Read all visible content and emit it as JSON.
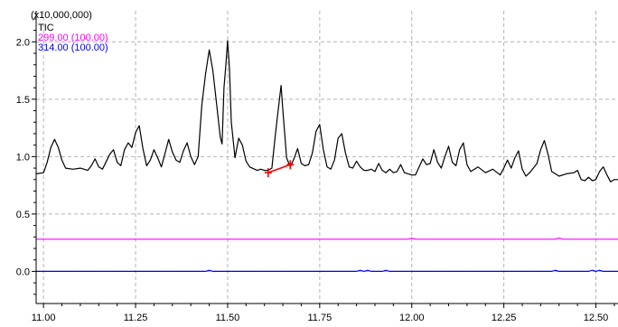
{
  "chart_data": {
    "type": "line",
    "multiplier_label": "(x10,000,000)",
    "xlim": [
      10.98,
      12.56
    ],
    "ylim": [
      -0.28,
      2.27
    ],
    "x_ticks": [
      11.0,
      11.25,
      11.5,
      11.75,
      12.0,
      12.25,
      12.5
    ],
    "x_tick_labels": [
      "11.00",
      "11.25",
      "11.50",
      "11.75",
      "12.00",
      "12.25",
      "12.50"
    ],
    "y_ticks": [
      0.0,
      0.5,
      1.0,
      1.5,
      2.0
    ],
    "y_tick_labels": [
      "0.0",
      "0.5",
      "1.0",
      "1.5",
      "2.0"
    ],
    "grid": true,
    "legend_position": "top-left",
    "series": [
      {
        "name": "TIC",
        "color": "#000000",
        "points": [
          [
            10.98,
            0.85
          ],
          [
            11.0,
            0.86
          ],
          [
            11.01,
            0.95
          ],
          [
            11.02,
            1.08
          ],
          [
            11.03,
            1.15
          ],
          [
            11.04,
            1.08
          ],
          [
            11.05,
            0.97
          ],
          [
            11.06,
            0.9
          ],
          [
            11.08,
            0.89
          ],
          [
            11.1,
            0.9
          ],
          [
            11.12,
            0.88
          ],
          [
            11.13,
            0.92
          ],
          [
            11.14,
            0.98
          ],
          [
            11.15,
            0.91
          ],
          [
            11.16,
            0.89
          ],
          [
            11.18,
            1.02
          ],
          [
            11.19,
            1.06
          ],
          [
            11.2,
            0.95
          ],
          [
            11.21,
            0.92
          ],
          [
            11.22,
            1.06
          ],
          [
            11.23,
            1.12
          ],
          [
            11.24,
            1.08
          ],
          [
            11.25,
            1.21
          ],
          [
            11.26,
            1.27
          ],
          [
            11.27,
            1.07
          ],
          [
            11.28,
            0.92
          ],
          [
            11.29,
            0.97
          ],
          [
            11.3,
            1.06
          ],
          [
            11.31,
            0.99
          ],
          [
            11.32,
            0.91
          ],
          [
            11.33,
            1.03
          ],
          [
            11.34,
            1.15
          ],
          [
            11.35,
            1.04
          ],
          [
            11.36,
            0.97
          ],
          [
            11.37,
            0.95
          ],
          [
            11.38,
            1.05
          ],
          [
            11.39,
            1.12
          ],
          [
            11.4,
            1.0
          ],
          [
            11.41,
            0.93
          ],
          [
            11.42,
            1.0
          ],
          [
            11.43,
            1.45
          ],
          [
            11.44,
            1.72
          ],
          [
            11.45,
            1.93
          ],
          [
            11.46,
            1.75
          ],
          [
            11.47,
            1.46
          ],
          [
            11.48,
            1.17
          ],
          [
            11.485,
            1.11
          ],
          [
            11.49,
            1.6
          ],
          [
            11.495,
            1.79
          ],
          [
            11.5,
            2.01
          ],
          [
            11.505,
            1.76
          ],
          [
            11.51,
            1.3
          ],
          [
            11.52,
            0.99
          ],
          [
            11.53,
            1.16
          ],
          [
            11.54,
            1.1
          ],
          [
            11.55,
            0.96
          ],
          [
            11.56,
            0.91
          ],
          [
            11.58,
            0.88
          ],
          [
            11.59,
            0.89
          ],
          [
            11.6,
            0.88
          ],
          [
            11.61,
            0.88
          ],
          [
            11.62,
            0.9
          ],
          [
            11.63,
            1.2
          ],
          [
            11.64,
            1.48
          ],
          [
            11.645,
            1.62
          ],
          [
            11.65,
            1.4
          ],
          [
            11.66,
            0.99
          ],
          [
            11.67,
            0.91
          ],
          [
            11.68,
            0.98
          ],
          [
            11.69,
            1.07
          ],
          [
            11.7,
            0.94
          ],
          [
            11.71,
            0.92
          ],
          [
            11.72,
            0.93
          ],
          [
            11.73,
            1.03
          ],
          [
            11.74,
            1.22
          ],
          [
            11.75,
            1.28
          ],
          [
            11.76,
            1.06
          ],
          [
            11.77,
            0.91
          ],
          [
            11.78,
            0.89
          ],
          [
            11.79,
            0.97
          ],
          [
            11.8,
            1.16
          ],
          [
            11.81,
            1.2
          ],
          [
            11.82,
            1.03
          ],
          [
            11.83,
            0.91
          ],
          [
            11.84,
            0.9
          ],
          [
            11.85,
            0.96
          ],
          [
            11.86,
            0.91
          ],
          [
            11.87,
            0.88
          ],
          [
            11.88,
            0.88
          ],
          [
            11.89,
            0.89
          ],
          [
            11.9,
            0.87
          ],
          [
            11.91,
            0.94
          ],
          [
            11.92,
            0.88
          ],
          [
            11.93,
            0.86
          ],
          [
            11.94,
            0.89
          ],
          [
            11.95,
            0.86
          ],
          [
            11.96,
            0.87
          ],
          [
            11.97,
            0.93
          ],
          [
            11.98,
            0.86
          ],
          [
            11.99,
            0.85
          ],
          [
            12.0,
            0.84
          ],
          [
            12.01,
            0.84
          ],
          [
            12.02,
            0.91
          ],
          [
            12.03,
            0.98
          ],
          [
            12.04,
            0.93
          ],
          [
            12.05,
            0.94
          ],
          [
            12.06,
            1.06
          ],
          [
            12.07,
            0.95
          ],
          [
            12.08,
            0.9
          ],
          [
            12.09,
            1.0
          ],
          [
            12.1,
            1.09
          ],
          [
            12.11,
            0.95
          ],
          [
            12.12,
            0.92
          ],
          [
            12.13,
            1.06
          ],
          [
            12.14,
            1.12
          ],
          [
            12.15,
            0.93
          ],
          [
            12.16,
            0.87
          ],
          [
            12.18,
            0.91
          ],
          [
            12.2,
            0.86
          ],
          [
            12.22,
            0.89
          ],
          [
            12.24,
            0.84
          ],
          [
            12.25,
            0.9
          ],
          [
            12.26,
            0.97
          ],
          [
            12.27,
            0.9
          ],
          [
            12.28,
            0.99
          ],
          [
            12.29,
            1.05
          ],
          [
            12.3,
            0.89
          ],
          [
            12.31,
            0.83
          ],
          [
            12.32,
            0.86
          ],
          [
            12.33,
            0.9
          ],
          [
            12.34,
            0.94
          ],
          [
            12.35,
            1.06
          ],
          [
            12.36,
            1.14
          ],
          [
            12.37,
            1.02
          ],
          [
            12.38,
            0.87
          ],
          [
            12.4,
            0.83
          ],
          [
            12.42,
            0.85
          ],
          [
            12.44,
            0.86
          ],
          [
            12.45,
            0.88
          ],
          [
            12.46,
            0.8
          ],
          [
            12.47,
            0.79
          ],
          [
            12.48,
            0.82
          ],
          [
            12.49,
            0.79
          ],
          [
            12.5,
            0.8
          ],
          [
            12.51,
            0.87
          ],
          [
            12.52,
            0.91
          ],
          [
            12.53,
            0.84
          ],
          [
            12.54,
            0.78
          ],
          [
            12.55,
            0.8
          ],
          [
            12.56,
            0.8
          ]
        ]
      },
      {
        "name": "299.00 (100.00)",
        "color": "#ff00ff",
        "points": [
          [
            10.98,
            0.28
          ],
          [
            11.99,
            0.28
          ],
          [
            12.0,
            0.29
          ],
          [
            12.01,
            0.28
          ],
          [
            12.39,
            0.28
          ],
          [
            12.4,
            0.29
          ],
          [
            12.41,
            0.28
          ],
          [
            12.56,
            0.28
          ]
        ]
      },
      {
        "name": "314.00 (100.00)",
        "color": "#0000ff",
        "points": [
          [
            10.98,
            0.0
          ],
          [
            11.44,
            0.0
          ],
          [
            11.45,
            0.01
          ],
          [
            11.46,
            0.0
          ],
          [
            11.85,
            0.0
          ],
          [
            11.86,
            0.01
          ],
          [
            11.87,
            0.0
          ],
          [
            11.88,
            0.01
          ],
          [
            11.89,
            0.0
          ],
          [
            11.92,
            0.0
          ],
          [
            11.93,
            0.01
          ],
          [
            11.94,
            0.0
          ],
          [
            12.38,
            0.0
          ],
          [
            12.39,
            0.01
          ],
          [
            12.4,
            0.0
          ],
          [
            12.48,
            0.0
          ],
          [
            12.49,
            0.01
          ],
          [
            12.5,
            0.0
          ],
          [
            12.51,
            0.01
          ],
          [
            12.52,
            0.0
          ],
          [
            12.56,
            0.0
          ]
        ]
      }
    ],
    "annotations": [
      {
        "type": "integration-baseline",
        "color": "#ff0000",
        "x": [
          11.61,
          11.67
        ],
        "y": [
          0.86,
          0.93
        ]
      }
    ]
  }
}
